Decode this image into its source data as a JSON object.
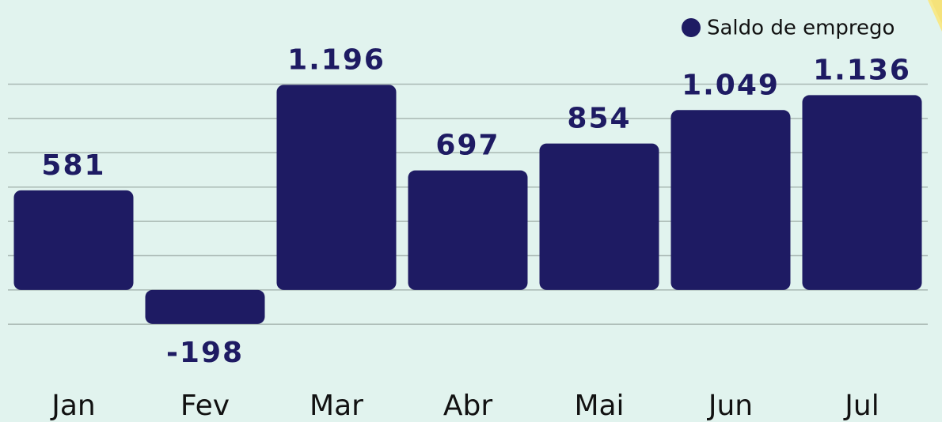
{
  "chart_data": {
    "type": "bar",
    "categories": [
      "Jan",
      "Fev",
      "Mar",
      "Abr",
      "Mai",
      "Jun",
      "Jul"
    ],
    "series": [
      {
        "name": "Saldo de emprego",
        "color": "#1e1b63",
        "values": [
          581,
          -198,
          1196,
          697,
          854,
          1049,
          1136
        ],
        "value_labels": [
          "581",
          "-198",
          "1.196",
          "697",
          "854",
          "1.049",
          "1.136"
        ]
      }
    ],
    "ylim": [
      -300,
      1700
    ],
    "yticks": [
      -200,
      0,
      200,
      400,
      600,
      800,
      1000,
      1200
    ],
    "grid": true,
    "legend": "top-right"
  }
}
